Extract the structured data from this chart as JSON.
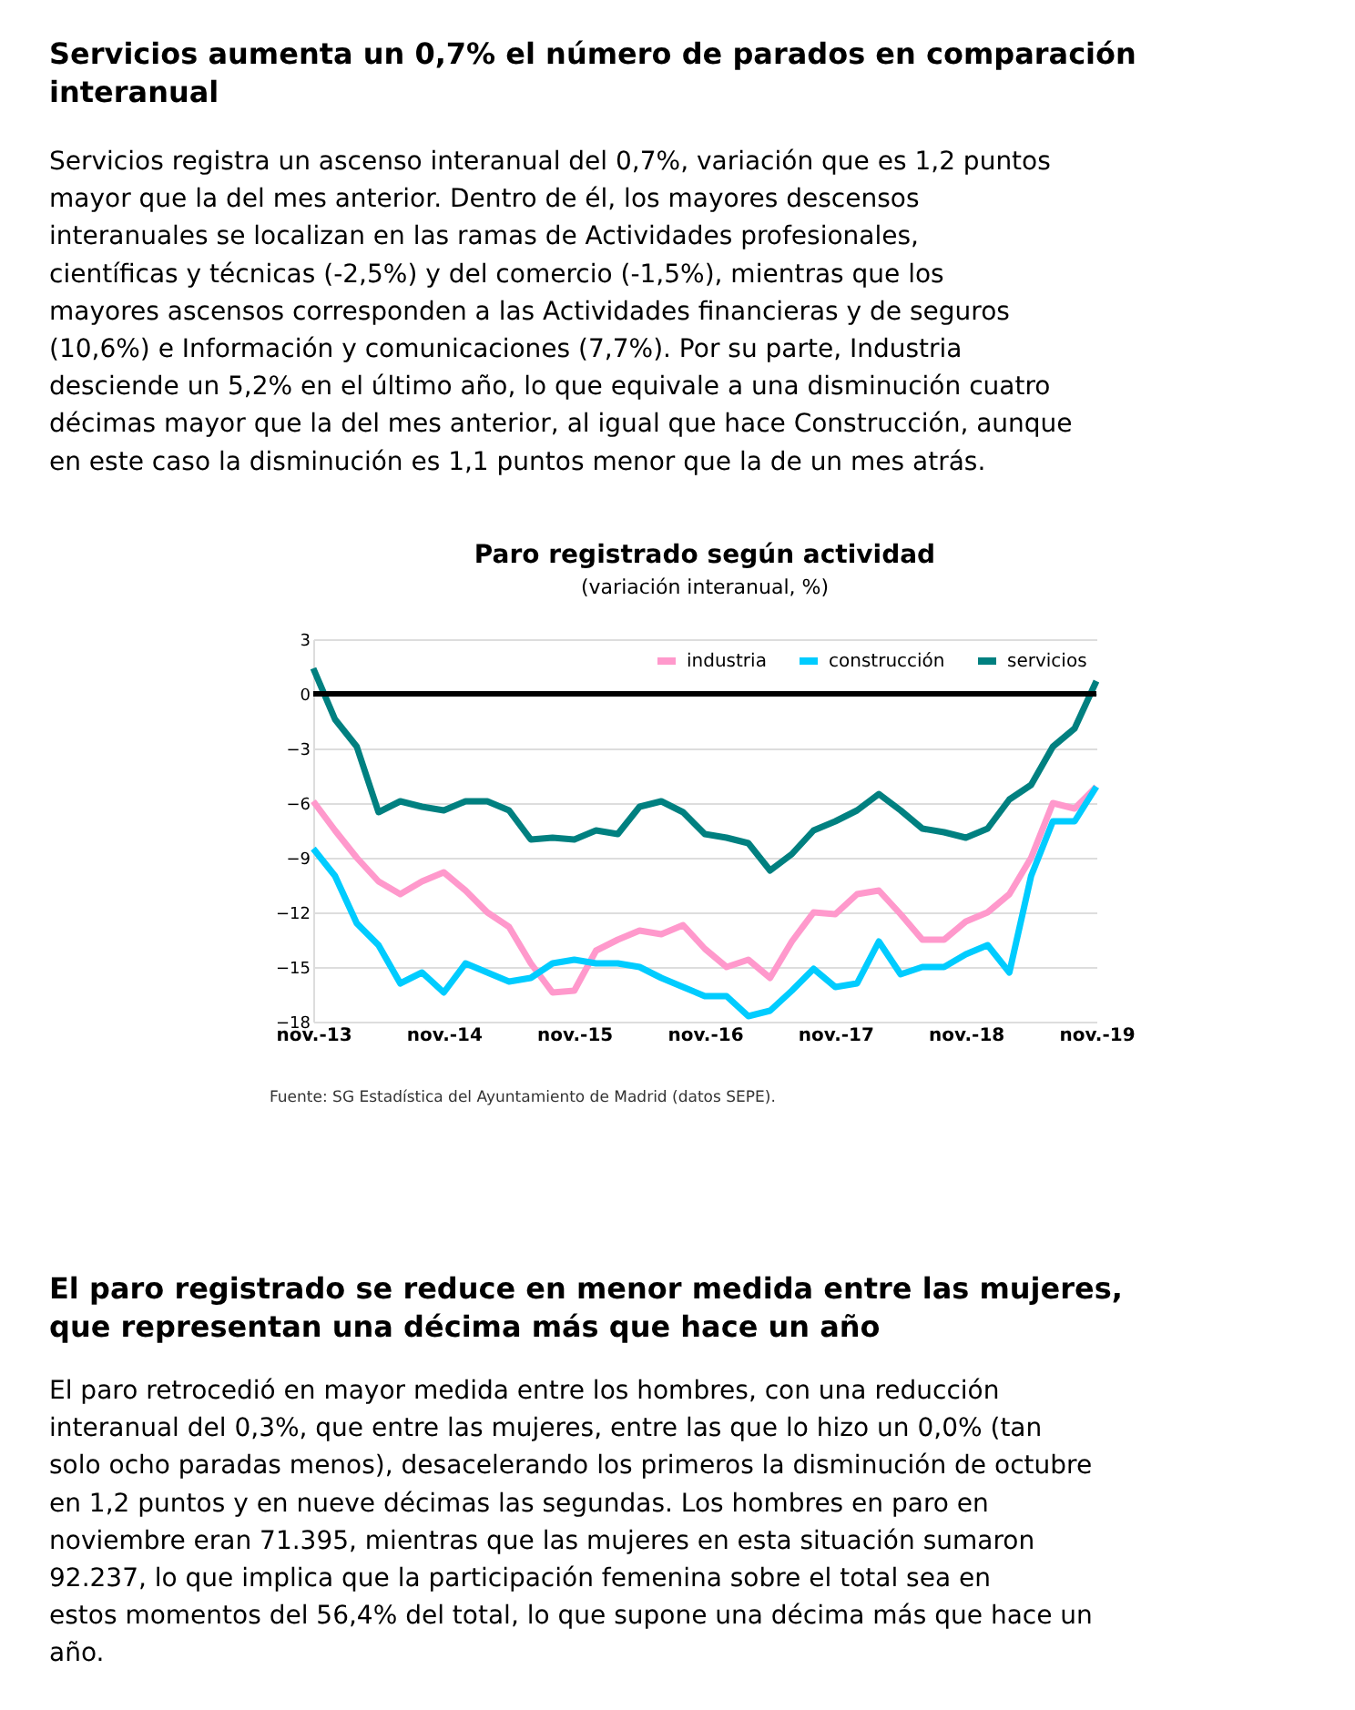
{
  "chart_data": {
    "type": "line",
    "title": "Paro registrado según actividad",
    "subtitle": "(variación interanual, %)",
    "categories": [
      "nov.-13",
      null,
      null,
      null,
      null,
      null,
      "nov.-14",
      null,
      null,
      null,
      null,
      null,
      "nov.-15",
      null,
      null,
      null,
      null,
      null,
      "nov.-16",
      null,
      null,
      null,
      null,
      null,
      "nov.-17",
      null,
      null,
      null,
      null,
      null,
      "nov.-18",
      null,
      null,
      null,
      null,
      null,
      "nov.-19"
    ],
    "series": [
      {
        "name": "industria",
        "color": "#ff99cc",
        "values": [
          -5.9,
          -7.5,
          -9.0,
          -10.3,
          -11.0,
          -10.3,
          -9.8,
          -10.8,
          -12.0,
          -12.8,
          -14.8,
          -16.4,
          -16.3,
          -14.1,
          -13.5,
          -13.0,
          -13.2,
          -12.7,
          -14.0,
          -15.0,
          -14.6,
          -15.6,
          -13.6,
          -12.0,
          -12.1,
          -11.0,
          -10.8,
          -12.1,
          -13.5,
          -13.5,
          -12.5,
          -12.0,
          -11.0,
          -9.0,
          -6.0,
          -6.3,
          -5.1
        ]
      },
      {
        "name": "construcción",
        "color": "#00ccff",
        "values": [
          -8.5,
          -10.0,
          -12.6,
          -13.8,
          -15.9,
          -15.3,
          -16.4,
          -14.8,
          -15.3,
          -15.8,
          -15.6,
          -14.8,
          -14.6,
          -14.8,
          -14.8,
          -15.0,
          -15.6,
          -16.1,
          -16.6,
          -16.6,
          -17.7,
          -17.4,
          -16.3,
          -15.1,
          -16.1,
          -15.9,
          -13.6,
          -15.4,
          -15.0,
          -15.0,
          -14.3,
          -13.8,
          -15.3,
          -10.0,
          -7.0,
          -7.0,
          -5.1
        ]
      },
      {
        "name": "servicios",
        "color": "#008080",
        "values": [
          1.4,
          -1.4,
          -2.9,
          -6.5,
          -5.9,
          -6.2,
          -6.4,
          -5.9,
          -5.9,
          -6.4,
          -8.0,
          -7.9,
          -8.0,
          -7.5,
          -7.7,
          -6.2,
          -5.9,
          -6.5,
          -7.7,
          -7.9,
          -8.2,
          -9.7,
          -8.8,
          -7.5,
          -7.0,
          -6.4,
          -5.5,
          -6.4,
          -7.4,
          -7.6,
          -7.9,
          -7.4,
          -5.8,
          -5.0,
          -2.9,
          -1.9,
          0.7
        ]
      }
    ],
    "ylim": [
      -18,
      3
    ],
    "yticks": [
      -18,
      -15,
      -12,
      -9,
      -6,
      -3,
      0,
      3
    ],
    "grid": "y",
    "legend": "top right",
    "ref_lines": [
      {
        "axis": "y",
        "value": 0,
        "color": "#000000"
      }
    ],
    "annotations": [
      "Servicios aumenta un 0,7% el número de parados en comparación interanual",
      "Servicios registra un ascenso interanual del 0,7%, variación que es 1,2 puntos mayor que la del mes anterior. Dentro de él, los mayores descensos interanuales se localizan en las ramas de Actividades profesionales, científicas y técnicas (-2,5%) y del comercio (-1,5%), mientras que los mayores ascensos corresponden a las Actividades financieras y de seguros (10,6%) e Información y comunicaciones (7,7%). Por su parte, Industria desciende un 5,2% en el último año, lo que equivale a una disminución cuatro décimas mayor que la del mes anterior, al igual que hace Construcción, aunque en este caso la disminución es 1,1 puntos menor que la de un mes atrás.",
      "Fuente: SG Estadística del Ayuntamiento de Madrid (datos SEPE).",
      "El paro registrado se reduce en menor medida entre las mujeres, que representan una décima más que hace un año",
      "El paro retrocedió en mayor medida entre los hombres, con una reducción interanual del 0,3%, que entre las mujeres, entre las que lo hizo un 0,0% (tan solo ocho paradas menos), desacelerando los primeros la disminución de octubre en 1,2 puntos y en nueve décimas las segundas. Los hombres en paro en noviembre eran 71.395, mientras que las mujeres en esta situación sumaron 92.237, lo que implica que la participación femenina sobre el total sea en estos momentos del 56,4% del total, lo que supone una décima más que hace un año."
    ]
  }
}
